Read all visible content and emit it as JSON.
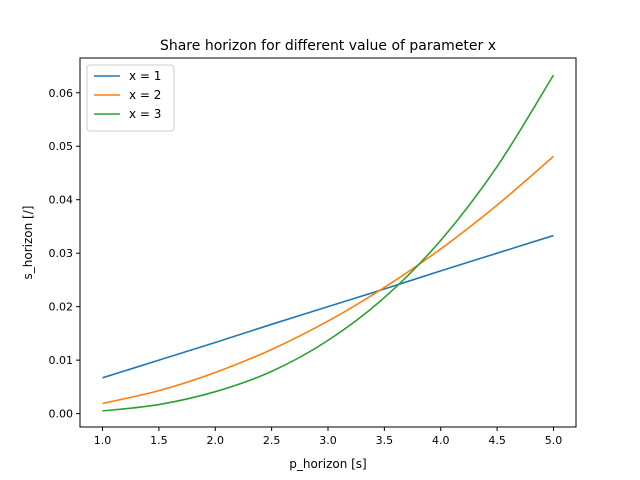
{
  "chart_data": {
    "type": "line",
    "title": "Share horizon for different value of parameter x",
    "xlabel": "p_horizon [s]",
    "ylabel": "s_horizon [/]",
    "xlim": [
      0.8,
      5.2
    ],
    "ylim": [
      -0.0025,
      0.0665
    ],
    "xticks": [
      1.0,
      1.5,
      2.0,
      2.5,
      3.0,
      3.5,
      4.0,
      4.5,
      5.0
    ],
    "xtick_labels": [
      "1.0",
      "1.5",
      "2.0",
      "2.5",
      "3.0",
      "3.5",
      "4.0",
      "4.5",
      "5.0"
    ],
    "yticks": [
      0.0,
      0.01,
      0.02,
      0.03,
      0.04,
      0.05,
      0.06
    ],
    "ytick_labels": [
      "0.00",
      "0.01",
      "0.02",
      "0.03",
      "0.04",
      "0.05",
      "0.06"
    ],
    "grid": false,
    "legend_position": "top-left",
    "x": [
      1.0,
      1.5,
      2.0,
      2.5,
      3.0,
      3.5,
      4.0,
      4.5,
      5.0
    ],
    "series": [
      {
        "name": "x = 1",
        "color": "#1f77b4",
        "values": [
          0.0067,
          0.01,
          0.0133,
          0.0167,
          0.02,
          0.0233,
          0.0267,
          0.03,
          0.0333
        ]
      },
      {
        "name": "x = 2",
        "color": "#ff7f0e",
        "values": [
          0.0019,
          0.0043,
          0.0077,
          0.012,
          0.0173,
          0.0236,
          0.0308,
          0.039,
          0.0481
        ]
      },
      {
        "name": "x = 3",
        "color": "#2ca02c",
        "values": [
          0.0005,
          0.0017,
          0.0041,
          0.0079,
          0.0137,
          0.0217,
          0.0324,
          0.0462,
          0.0633
        ]
      }
    ]
  }
}
